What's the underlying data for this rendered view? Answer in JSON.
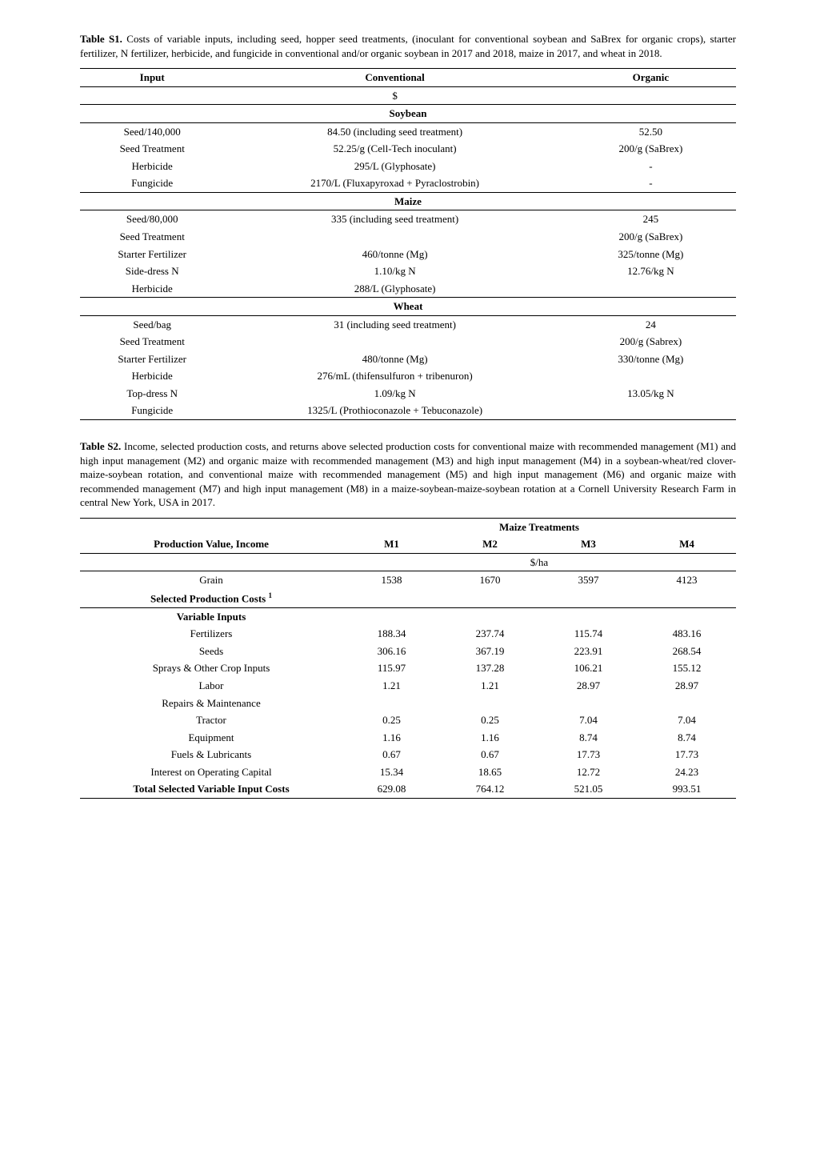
{
  "tableS1": {
    "caption_label": "Table S1.",
    "caption_text": " Costs of variable inputs, including seed, hopper seed treatments, (inoculant for conventional soybean and SaBrex for organic crops), starter fertilizer, N fertilizer, herbicide, and fungicide in conventional and/or organic soybean in 2017 and 2018, maize in 2017, and wheat in 2018.",
    "headers": {
      "input": "Input",
      "conventional": "Conventional",
      "organic": "Organic"
    },
    "currency": "$",
    "sections": [
      {
        "title": "Soybean",
        "rows": [
          {
            "input": "Seed/140,000",
            "conventional": "84.50 (including seed treatment)",
            "organic": "52.50"
          },
          {
            "input": "Seed Treatment",
            "conventional": "52.25/g (Cell-Tech inoculant)",
            "organic": "200/g (SaBrex)"
          },
          {
            "input": "Herbicide",
            "conventional": "295/L (Glyphosate)",
            "organic": "-"
          },
          {
            "input": "Fungicide",
            "conventional": "2170/L (Fluxapyroxad + Pyraclostrobin)",
            "organic": "-"
          }
        ]
      },
      {
        "title": "Maize",
        "rows": [
          {
            "input": "Seed/80,000",
            "conventional": "335 (including seed treatment)",
            "organic": "245"
          },
          {
            "input": "Seed Treatment",
            "conventional": "",
            "organic": "200/g (SaBrex)"
          },
          {
            "input": "Starter Fertilizer",
            "conventional": "460/tonne (Mg)",
            "organic": "325/tonne (Mg)"
          },
          {
            "input": "Side-dress N",
            "conventional": "1.10/kg N",
            "organic": "12.76/kg N"
          },
          {
            "input": "Herbicide",
            "conventional": "288/L (Glyphosate)",
            "organic": ""
          }
        ]
      },
      {
        "title": "Wheat",
        "rows": [
          {
            "input": "Seed/bag",
            "conventional": "31 (including seed treatment)",
            "organic": "24"
          },
          {
            "input": "Seed Treatment",
            "conventional": "",
            "organic": "200/g (Sabrex)"
          },
          {
            "input": "Starter Fertilizer",
            "conventional": "480/tonne (Mg)",
            "organic": "330/tonne (Mg)"
          },
          {
            "input": "Herbicide",
            "conventional": "276/mL (thifensulfuron + tribenuron)",
            "organic": ""
          },
          {
            "input": "Top-dress N",
            "conventional": "1.09/kg N",
            "organic": "13.05/kg N"
          },
          {
            "input": "Fungicide",
            "conventional": "1325/L (Prothioconazole + Tebuconazole)",
            "organic": ""
          }
        ]
      }
    ]
  },
  "tableS2": {
    "caption_label": "Table S2.",
    "caption_text": " Income, selected production costs, and returns above selected production costs for conventional maize with recommended management (M1) and high input management (M2) and organic maize with recommended management (M3) and high input management (M4) in a soybean-wheat/red clover-maize-soybean rotation, and conventional maize with recommended management (M5) and high input management (M6) and organic maize with recommended management (M7) and high input management (M8) in a maize-soybean-maize-soybean rotation at a Cornell University Research Farm in central New York, USA in 2017.",
    "group_header": "Maize Treatments",
    "col_headers": {
      "label": "Production Value, Income",
      "m1": "M1",
      "m2": "M2",
      "m3": "M3",
      "m4": "M4"
    },
    "unit": "$/ha",
    "rows": [
      {
        "label": "Grain",
        "m1": "1538",
        "m2": "1670",
        "m3": "3597",
        "m4": "4123",
        "bold": false
      },
      {
        "label": "Selected Production Costs ¹",
        "m1": "",
        "m2": "",
        "m3": "",
        "m4": "",
        "bold": true,
        "underline": true
      },
      {
        "label": "Variable Inputs",
        "m1": "",
        "m2": "",
        "m3": "",
        "m4": "",
        "bold": true
      },
      {
        "label": "Fertilizers",
        "m1": "188.34",
        "m2": "237.74",
        "m3": "115.74",
        "m4": "483.16",
        "bold": false
      },
      {
        "label": "Seeds",
        "m1": "306.16",
        "m2": "367.19",
        "m3": "223.91",
        "m4": "268.54",
        "bold": false
      },
      {
        "label": "Sprays & Other Crop Inputs",
        "m1": "115.97",
        "m2": "137.28",
        "m3": "106.21",
        "m4": "155.12",
        "bold": false
      },
      {
        "label": "Labor",
        "m1": "1.21",
        "m2": "1.21",
        "m3": "28.97",
        "m4": "28.97",
        "bold": false
      },
      {
        "label": "Repairs & Maintenance",
        "m1": "",
        "m2": "",
        "m3": "",
        "m4": "",
        "bold": false
      },
      {
        "label": "Tractor",
        "m1": "0.25",
        "m2": "0.25",
        "m3": "7.04",
        "m4": "7.04",
        "bold": false
      },
      {
        "label": "Equipment",
        "m1": "1.16",
        "m2": "1.16",
        "m3": "8.74",
        "m4": "8.74",
        "bold": false
      },
      {
        "label": "Fuels & Lubricants",
        "m1": "0.67",
        "m2": "0.67",
        "m3": "17.73",
        "m4": "17.73",
        "bold": false
      },
      {
        "label": "Interest on Operating Capital",
        "m1": "15.34",
        "m2": "18.65",
        "m3": "12.72",
        "m4": "24.23",
        "bold": false
      },
      {
        "label": "Total Selected Variable Input Costs",
        "m1": "629.08",
        "m2": "764.12",
        "m3": "521.05",
        "m4": "993.51",
        "bold": true,
        "underline": true
      }
    ]
  }
}
